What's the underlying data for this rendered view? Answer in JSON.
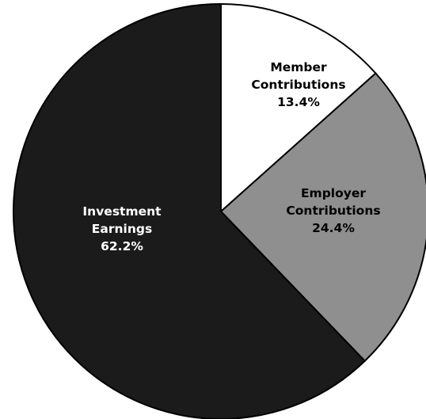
{
  "chart_data": {
    "type": "pie",
    "start_angle_deg": 0,
    "direction": "clockwise",
    "slices": [
      {
        "label_lines": [
          "Member",
          "Contributions"
        ],
        "value": 13.4,
        "value_label": "13.4%",
        "color": "#ffffff",
        "text_color": "#000000"
      },
      {
        "label_lines": [
          "Employer",
          "Contributions"
        ],
        "value": 24.4,
        "value_label": "24.4%",
        "color": "#8f8f8f",
        "text_color": "#000000"
      },
      {
        "label_lines": [
          "Investment",
          "Earnings"
        ],
        "value": 62.2,
        "value_label": "62.2%",
        "color": "#1b1b1b",
        "text_color": "#ffffff"
      }
    ]
  }
}
